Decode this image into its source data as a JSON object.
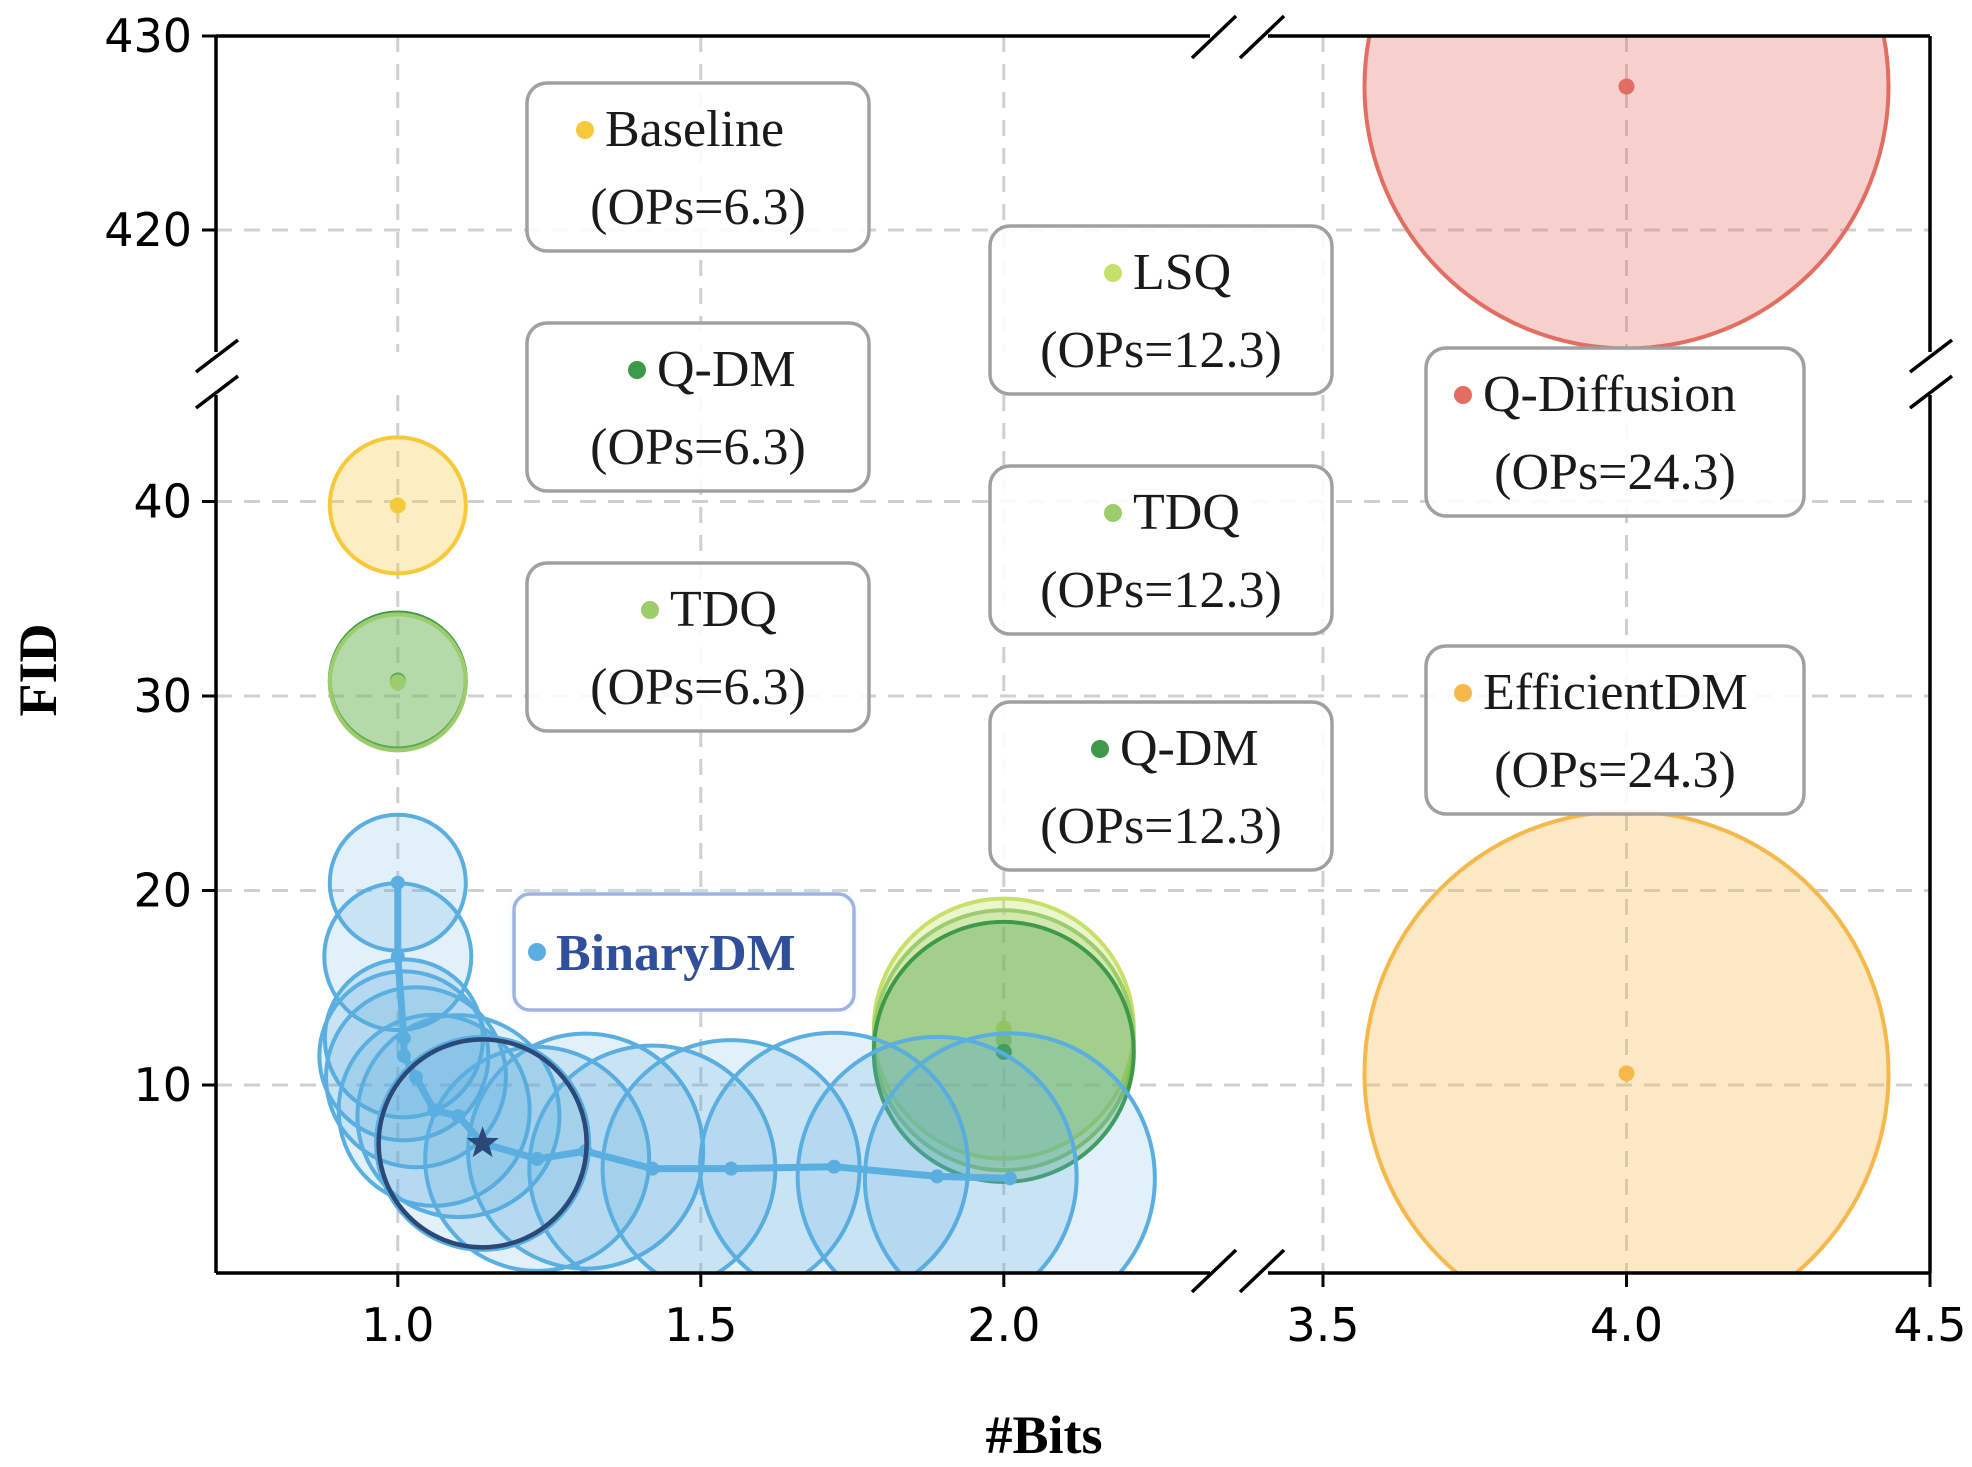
{
  "chart_data": {
    "type": "scatter",
    "xlabel": "#Bits",
    "ylabel": "FID",
    "x_ticks_left": [
      "1.0",
      "1.5",
      "2.0"
    ],
    "x_ticks_right": [
      "3.5",
      "4.0",
      "4.5"
    ],
    "y_ticks_lower": [
      "10",
      "20",
      "30",
      "40"
    ],
    "y_ticks_upper": [
      "420",
      "430"
    ],
    "xlim_left": [
      0.7,
      2.52
    ],
    "xlim_right": [
      3.5,
      4.5
    ],
    "ylim_lower": [
      1,
      46
    ],
    "ylim_upper": [
      411.5,
      430
    ],
    "grid": true,
    "series": [
      {
        "method": "Baseline",
        "ops": "(OPs=6.3)",
        "color": "#f6c93b",
        "x": 1.0,
        "y": 39.8
      },
      {
        "method": "Q-DM",
        "ops": "(OPs=6.3)",
        "color": "#3e9a48",
        "x": 1.0,
        "y": 30.8
      },
      {
        "method": "TDQ",
        "ops": "(OPs=6.3)",
        "color": "#9ccd6c",
        "x": 1.0,
        "y": 30.7
      },
      {
        "method": "LSQ",
        "ops": "(OPs=12.3)",
        "color": "#c8e06a",
        "x": 2.0,
        "y": 12.9
      },
      {
        "method": "TDQ",
        "ops": "(OPs=12.3)",
        "color": "#9ccd6c",
        "x": 2.0,
        "y": 12.3
      },
      {
        "method": "Q-DM",
        "ops": "(OPs=12.3)",
        "color": "#3e9a48",
        "x": 2.0,
        "y": 11.7
      },
      {
        "method": "Q-Diffusion",
        "ops": "(OPs=24.3)",
        "color": "#e26d61",
        "x": 4.0,
        "y": 427.4
      },
      {
        "method": "EfficientDM",
        "ops": "(OPs=24.3)",
        "color": "#f6b84b",
        "x": 4.0,
        "y": 10.6
      }
    ],
    "binarydm": {
      "name": "BinaryDM",
      "color": "#5aaee0",
      "star_color": "#2c4877",
      "points": [
        {
          "x": 1.0,
          "y": 20.4
        },
        {
          "x": 1.0,
          "y": 16.6
        },
        {
          "x": 1.01,
          "y": 12.4
        },
        {
          "x": 1.01,
          "y": 11.5
        },
        {
          "x": 1.03,
          "y": 10.4
        },
        {
          "x": 1.06,
          "y": 8.7
        },
        {
          "x": 1.1,
          "y": 8.4
        },
        {
          "x": 1.14,
          "y": 7.0
        },
        {
          "x": 1.23,
          "y": 6.2
        },
        {
          "x": 1.31,
          "y": 6.6
        },
        {
          "x": 1.42,
          "y": 5.7
        },
        {
          "x": 1.55,
          "y": 5.7
        },
        {
          "x": 1.72,
          "y": 5.8
        },
        {
          "x": 1.89,
          "y": 5.3
        },
        {
          "x": 2.01,
          "y": 5.2
        }
      ],
      "star": {
        "x": 1.14,
        "y": 7.0
      }
    }
  }
}
